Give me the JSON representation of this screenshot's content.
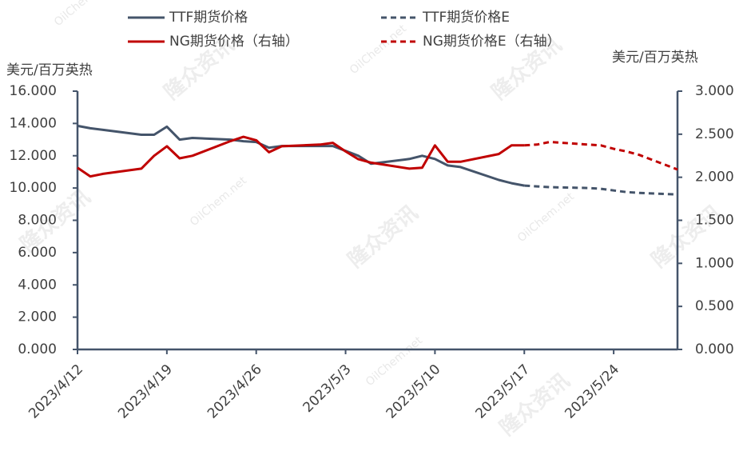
{
  "chart_data": {
    "type": "line",
    "y_label": "美元/百万英热",
    "y2_label": "美元/百万英热",
    "watermarks": [
      "隆众资讯",
      "OilChem.net"
    ],
    "x": [
      "2023/4/12",
      "2023/4/13",
      "2023/4/14",
      "2023/4/17",
      "2023/4/18",
      "2023/4/19",
      "2023/4/20",
      "2023/4/21",
      "2023/4/24",
      "2023/4/25",
      "2023/4/26",
      "2023/4/27",
      "2023/4/28",
      "2023/5/1",
      "2023/5/2",
      "2023/5/3",
      "2023/5/4",
      "2023/5/5",
      "2023/5/8",
      "2023/5/9",
      "2023/5/10",
      "2023/5/11",
      "2023/5/12",
      "2023/5/15",
      "2023/5/16",
      "2023/5/17",
      "2023/5/18",
      "2023/5/19",
      "2023/5/22",
      "2023/5/23",
      "2023/5/24",
      "2023/5/25",
      "2023/5/26",
      "2023/5/29"
    ],
    "xlim": [
      "2023/4/12",
      "2023/5/29"
    ],
    "xticks": [
      "2023/4/12",
      "2023/4/19",
      "2023/4/26",
      "2023/5/3",
      "2023/5/10",
      "2023/5/17",
      "2023/5/24"
    ],
    "ylim": [
      0,
      16
    ],
    "yticks": [
      {
        "value": 0,
        "label": "0.000"
      },
      {
        "value": 2,
        "label": "2.000"
      },
      {
        "value": 4,
        "label": "4.000"
      },
      {
        "value": 6,
        "label": "6.000"
      },
      {
        "value": 8,
        "label": "8.000"
      },
      {
        "value": 10,
        "label": "10.000"
      },
      {
        "value": 12,
        "label": "12.000"
      },
      {
        "value": 14,
        "label": "14.000"
      },
      {
        "value": 16,
        "label": "16.000"
      }
    ],
    "y2lim": [
      0,
      3
    ],
    "y2ticks": [
      {
        "value": 0,
        "label": "0.000"
      },
      {
        "value": 0.5,
        "label": "0.500"
      },
      {
        "value": 1,
        "label": "1.000"
      },
      {
        "value": 1.5,
        "label": "1.500"
      },
      {
        "value": 2,
        "label": "2.000"
      },
      {
        "value": 2.5,
        "label": "2.500"
      },
      {
        "value": 3,
        "label": "3.000"
      }
    ],
    "series": [
      {
        "name": "TTF期货价格",
        "color": "#44546a",
        "dash": false,
        "values": [
          13.85,
          13.7,
          13.6,
          13.3,
          13.3,
          13.8,
          13.0,
          13.1,
          13.0,
          12.9,
          12.85,
          12.5,
          12.6,
          12.6,
          12.6,
          12.3,
          12.0,
          11.5,
          11.8,
          12.0,
          11.8,
          11.4,
          11.3,
          10.5,
          10.3,
          10.15,
          null,
          null,
          null,
          null,
          null,
          null,
          null,
          null
        ]
      },
      {
        "name": "TTF期货价格E",
        "color": "#44546a",
        "dash": true,
        "values": [
          null,
          null,
          null,
          null,
          null,
          null,
          null,
          null,
          null,
          null,
          null,
          null,
          null,
          null,
          null,
          null,
          null,
          null,
          null,
          null,
          null,
          null,
          null,
          null,
          null,
          10.15,
          10.1,
          10.05,
          10.0,
          9.95,
          9.85,
          9.75,
          9.7,
          9.6
        ]
      },
      {
        "name": "NG期货价格（右轴）",
        "color": "#c00000",
        "dash": false,
        "axis": "y2",
        "values": [
          2.11,
          2.01,
          2.04,
          2.1,
          2.25,
          2.36,
          2.22,
          2.25,
          2.42,
          2.47,
          2.43,
          2.29,
          2.36,
          2.38,
          2.4,
          2.3,
          2.21,
          2.17,
          2.1,
          2.11,
          2.37,
          2.18,
          2.18,
          2.27,
          2.37,
          2.37,
          null,
          null,
          null,
          null,
          null,
          null,
          null,
          null
        ]
      },
      {
        "name": "NG期货价格E（右轴）",
        "color": "#c00000",
        "dash": true,
        "axis": "y2",
        "values": [
          null,
          null,
          null,
          null,
          null,
          null,
          null,
          null,
          null,
          null,
          null,
          null,
          null,
          null,
          null,
          null,
          null,
          null,
          null,
          null,
          null,
          null,
          null,
          null,
          null,
          2.37,
          2.38,
          2.41,
          2.38,
          2.37,
          2.33,
          2.3,
          2.26,
          2.09
        ]
      }
    ]
  }
}
